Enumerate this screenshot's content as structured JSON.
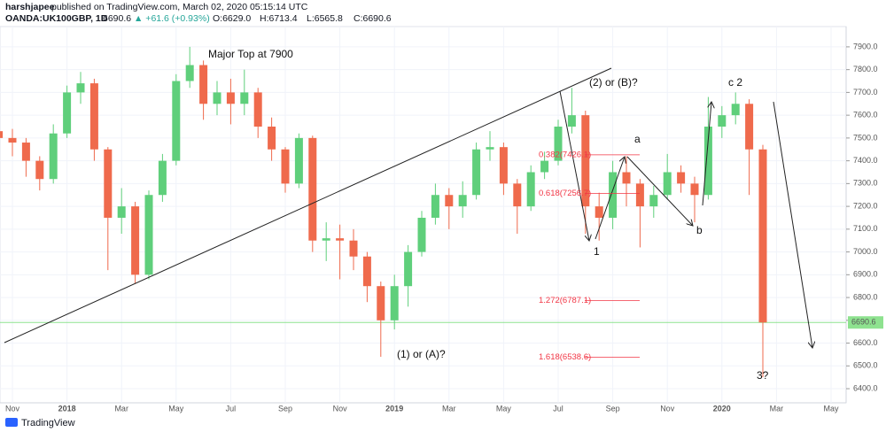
{
  "header": {
    "publisher": "harshjapee",
    "published": " published on TradingView.com, March 02, 2020 05:15:14 UTC",
    "symbol": "OANDA:UK100GBP, 1D",
    "last": "6690.6",
    "change": "▲ +61.6 (+0.93%)",
    "ohlc": [
      "O:6629.0",
      "H:6713.4",
      "L:6565.8",
      "C:6690.6"
    ]
  },
  "chart_data": {
    "type": "candlestick",
    "categories": [
      null,
      "Nov",
      null,
      null,
      null,
      "2018",
      null,
      null,
      null,
      "Mar",
      null,
      null,
      null,
      "May",
      null,
      null,
      null,
      "Jul",
      null,
      null,
      null,
      "Sep",
      null,
      null,
      null,
      "Nov",
      null,
      null,
      null,
      "2019",
      null,
      null,
      null,
      "Mar",
      null,
      null,
      null,
      "May",
      null,
      null,
      null,
      "Jul",
      null,
      null,
      null,
      "Sep",
      null,
      null,
      null,
      "Nov",
      null,
      null,
      null,
      "2020",
      null,
      null,
      null,
      "Mar",
      null,
      null,
      null,
      "May",
      null
    ],
    "open": [
      7530,
      7500,
      7480,
      7400,
      7320,
      7520,
      7700,
      7740,
      7450,
      7150,
      7200,
      6900,
      7250,
      7400,
      7750,
      7820,
      7650,
      7700,
      7650,
      7700,
      7550,
      7450,
      7300,
      7500,
      7050,
      7060,
      7050,
      6980,
      6850,
      6700,
      6850,
      7000,
      7150,
      7250,
      7200,
      7250,
      7450,
      7460,
      7300,
      7200,
      7350,
      7400,
      7550,
      7600,
      7200,
      7150,
      7350,
      7300,
      7200,
      7250,
      7350,
      7300,
      7250,
      7550,
      7600,
      7650,
      7450,
      null,
      null,
      null,
      null,
      null,
      null
    ],
    "high": [
      7570,
      7540,
      7500,
      7420,
      7560,
      7730,
      7790,
      7760,
      7460,
      7280,
      7220,
      7270,
      7430,
      7780,
      7900,
      7840,
      7750,
      7760,
      7800,
      7720,
      7590,
      7460,
      7520,
      7510,
      7130,
      7120,
      7100,
      7000,
      6870,
      6900,
      7030,
      7180,
      7300,
      7280,
      7310,
      7480,
      7530,
      7480,
      7320,
      7380,
      7440,
      7580,
      7720,
      7620,
      7260,
      7400,
      7420,
      7320,
      7290,
      7430,
      7380,
      7330,
      7680,
      7640,
      7700,
      7670,
      7470,
      null,
      null,
      null,
      null,
      null,
      null
    ],
    "low": [
      7440,
      7420,
      7330,
      7270,
      7300,
      7500,
      7650,
      7400,
      6920,
      7080,
      6860,
      6880,
      7220,
      7380,
      7720,
      7580,
      7600,
      7560,
      7600,
      7500,
      7400,
      7260,
      7280,
      7000,
      6960,
      6880,
      6920,
      6780,
      6540,
      6660,
      6760,
      6980,
      7120,
      7100,
      7150,
      7230,
      7400,
      7250,
      7080,
      7180,
      7320,
      7380,
      7520,
      7080,
      7050,
      7100,
      7200,
      7020,
      7150,
      7230,
      7260,
      7130,
      7230,
      7500,
      7560,
      7250,
      6450,
      null,
      null,
      null,
      null,
      null,
      null
    ],
    "close": [
      7500,
      7480,
      7400,
      7320,
      7520,
      7700,
      7740,
      7450,
      7150,
      7200,
      6900,
      7250,
      7400,
      7750,
      7820,
      7650,
      7700,
      7650,
      7700,
      7550,
      7450,
      7300,
      7500,
      7050,
      7060,
      7050,
      6980,
      6850,
      6700,
      6850,
      7000,
      7150,
      7250,
      7200,
      7250,
      7450,
      7460,
      7300,
      7200,
      7350,
      7400,
      7550,
      7600,
      7200,
      7150,
      7350,
      7300,
      7200,
      7250,
      7350,
      7300,
      7250,
      7550,
      7600,
      7650,
      7450,
      6690.6,
      null,
      null,
      null,
      null,
      null,
      null
    ],
    "up_color": "#5fcf7b",
    "down_color": "#ef6a4c",
    "ylim": [
      6338,
      7989
    ],
    "yticks": [
      {
        "value": 6400,
        "label": "6400.0"
      },
      {
        "value": 6500,
        "label": "6500.0"
      },
      {
        "value": 6600,
        "label": "6600.0"
      },
      {
        "value": 6700,
        "label": "6700.0"
      },
      {
        "value": 6800,
        "label": "6800.0"
      },
      {
        "value": 6900,
        "label": "6900.0"
      },
      {
        "value": 7000,
        "label": "7000.0"
      },
      {
        "value": 7100,
        "label": "7100.0"
      },
      {
        "value": 7200,
        "label": "7200.0"
      },
      {
        "value": 7300,
        "label": "7300.0"
      },
      {
        "value": 7400,
        "label": "7400.0"
      },
      {
        "value": 7500,
        "label": "7500.0"
      },
      {
        "value": 7600,
        "label": "7600.0"
      },
      {
        "value": 7700,
        "label": "7700.0"
      },
      {
        "value": 7800,
        "label": "7800.0"
      },
      {
        "value": 7900,
        "label": "7900.0"
      }
    ],
    "grid": true,
    "price_line": {
      "value": 6690.6,
      "label": "6690.6",
      "color": "#8ee28f"
    },
    "fib_levels": [
      {
        "value": 7426.1,
        "label": "0.382(7426.1)"
      },
      {
        "value": 7256.7,
        "label": "0.618(7256.7)"
      },
      {
        "value": 6787.1,
        "label": "1.272(6787.1)"
      },
      {
        "value": 6538.6,
        "label": "1.618(6538.6)"
      }
    ],
    "fib_color": "#f23645",
    "annotations": [
      "Major Top at 7900",
      "(2) or (B)?",
      "a",
      "1",
      "b",
      "c 2",
      "(1) or (A)?",
      "3?"
    ]
  },
  "footer": {
    "brand": "TradingView"
  }
}
